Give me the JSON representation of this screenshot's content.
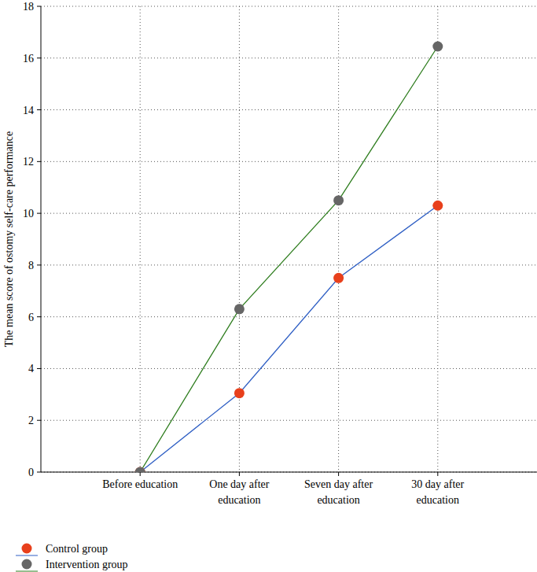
{
  "chart_data": {
    "type": "line",
    "y_label": "The mean score of ostomy self-care performance",
    "categories": [
      "Before education",
      "One day after education",
      "Seven day after education",
      "30 day after education"
    ],
    "series": [
      {
        "name": "Control group",
        "color": "#e8401c",
        "marker": "circle",
        "values": [
          0,
          3.05,
          7.5,
          10.3
        ]
      },
      {
        "name": "Intervention group",
        "color": "#666666",
        "marker": "circle",
        "values": [
          0,
          6.3,
          10.5,
          16.45
        ]
      }
    ],
    "ylim": [
      0,
      18
    ],
    "yticks": [
      0,
      2,
      4,
      6,
      8,
      10,
      12,
      14,
      16,
      18
    ],
    "grid": true,
    "legend": "bottom"
  }
}
